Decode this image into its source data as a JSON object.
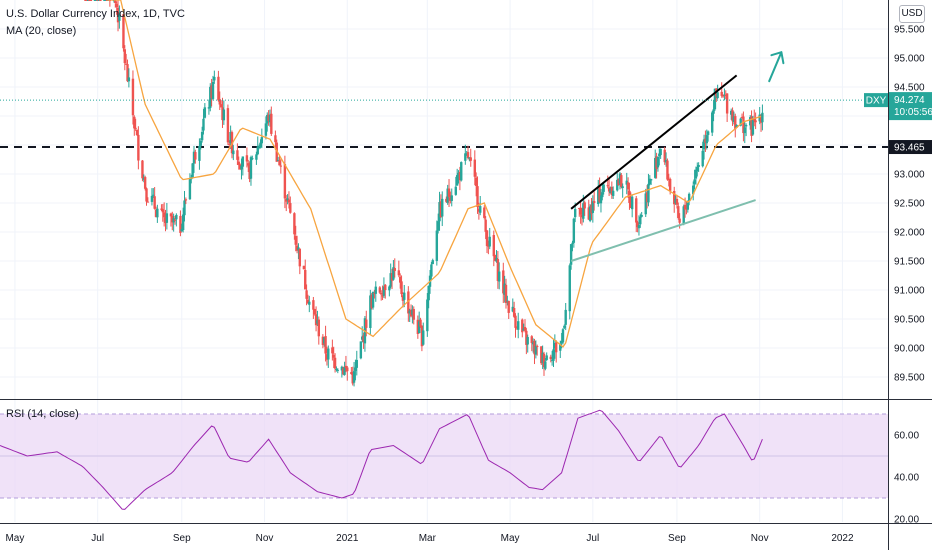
{
  "header": {
    "title": "U.S. Dollar Currency Index, 1D, TVC",
    "ma_label": "MA (20, close)",
    "rsi_label": "RSI (14, close)",
    "currency_button": "USD",
    "symbol_tag": "DXY",
    "last_price_label": "94.274",
    "countdown": "10:05:56",
    "level_label": "93.465"
  },
  "colors": {
    "up": "#26a69a",
    "down": "#ef5350",
    "ma": "#f7a540",
    "rsi": "#9c27b0",
    "rsi_band": "#e9d5f5",
    "trend_upper": "#000000",
    "trend_lower": "#7fbfae",
    "arrow": "#26a69a",
    "level": "#131722"
  },
  "chart_data": [
    {
      "type": "candlestick",
      "title": "U.S. Dollar Currency Index, 1D, TVC",
      "x_ticks": [
        "May",
        "Jul",
        "Sep",
        "Nov",
        "2021",
        "Mar",
        "May",
        "Jul",
        "Sep",
        "Nov",
        "2022"
      ],
      "y_ticks": [
        "89.500",
        "90.000",
        "90.500",
        "91.000",
        "91.500",
        "92.000",
        "92.500",
        "93.000",
        "93.500",
        "94.000",
        "94.500",
        "95.000",
        "95.500"
      ],
      "ylim": [
        89.2,
        95.9
      ],
      "series": [
        {
          "name": "U.S. Dollar Currency Index",
          "anchors": [
            [
              "2020-07-01",
              96.6
            ],
            [
              "2020-07-15",
              95.9
            ],
            [
              "2020-07-31",
              93.4
            ],
            [
              "2020-08-06",
              92.7
            ],
            [
              "2020-08-18",
              92.2
            ],
            [
              "2020-08-31",
              92.1
            ],
            [
              "2020-09-10",
              93.3
            ],
            [
              "2020-09-25",
              94.6
            ],
            [
              "2020-10-06",
              93.6
            ],
            [
              "2020-10-20",
              93.0
            ],
            [
              "2020-11-04",
              94.0
            ],
            [
              "2020-11-20",
              92.3
            ],
            [
              "2020-12-04",
              90.8
            ],
            [
              "2020-12-17",
              89.9
            ],
            [
              "2021-01-06",
              89.5
            ],
            [
              "2021-01-18",
              90.8
            ],
            [
              "2021-02-04",
              91.3
            ],
            [
              "2021-02-25",
              90.2
            ],
            [
              "2021-03-09",
              92.3
            ],
            [
              "2021-03-31",
              93.3
            ],
            [
              "2021-04-13",
              92.0
            ],
            [
              "2021-04-29",
              90.8
            ],
            [
              "2021-05-11",
              90.2
            ],
            [
              "2021-05-25",
              89.8
            ],
            [
              "2021-06-08",
              90.1
            ],
            [
              "2021-06-18",
              92.3
            ],
            [
              "2021-06-30",
              92.4
            ],
            [
              "2021-07-07",
              92.7
            ],
            [
              "2021-07-23",
              92.9
            ],
            [
              "2021-08-04",
              92.2
            ],
            [
              "2021-08-20",
              93.5
            ],
            [
              "2021-09-03",
              92.1
            ],
            [
              "2021-09-17",
              93.2
            ],
            [
              "2021-09-29",
              94.3
            ],
            [
              "2021-10-06",
              94.3
            ],
            [
              "2021-10-15",
              93.9
            ],
            [
              "2021-10-27",
              93.8
            ],
            [
              "2021-11-03",
              94.1
            ]
          ],
          "last": 94.274
        },
        {
          "name": "MA (20, close)",
          "anchors": [
            [
              "2020-07-08",
              97.0
            ],
            [
              "2020-08-05",
              94.2
            ],
            [
              "2020-09-01",
              92.9
            ],
            [
              "2020-09-25",
              93.0
            ],
            [
              "2020-10-15",
              93.8
            ],
            [
              "2020-11-05",
              93.6
            ],
            [
              "2020-12-05",
              92.4
            ],
            [
              "2020-12-31",
              90.5
            ],
            [
              "2021-01-20",
              90.2
            ],
            [
              "2021-02-10",
              90.7
            ],
            [
              "2021-03-10",
              91.3
            ],
            [
              "2021-03-31",
              92.4
            ],
            [
              "2021-04-12",
              92.5
            ],
            [
              "2021-05-01",
              91.4
            ],
            [
              "2021-05-20",
              90.4
            ],
            [
              "2021-06-10",
              90.0
            ],
            [
              "2021-06-30",
              91.8
            ],
            [
              "2021-07-25",
              92.6
            ],
            [
              "2021-08-20",
              92.8
            ],
            [
              "2021-09-10",
              92.5
            ],
            [
              "2021-09-30",
              93.5
            ],
            [
              "2021-10-20",
              93.9
            ],
            [
              "2021-11-03",
              94.0
            ]
          ]
        }
      ],
      "horizontal_level": 93.465,
      "trendlines": [
        {
          "name": "upper",
          "from": [
            "2021-06-15",
            92.4
          ],
          "to": [
            "2021-10-15",
            94.7
          ]
        },
        {
          "name": "lower",
          "from": [
            "2021-06-15",
            91.5
          ],
          "to": [
            "2021-10-29",
            92.55
          ]
        }
      ],
      "arrow": {
        "from": [
          "2021-11-08",
          94.6
        ],
        "to": [
          "2021-11-17",
          95.1
        ]
      }
    },
    {
      "type": "line",
      "title": "RSI (14, close)",
      "y_ticks": [
        "20.00",
        "40.00",
        "60.00"
      ],
      "ylim": [
        18,
        78
      ],
      "band": [
        30,
        70
      ],
      "series": [
        {
          "name": "RSI (14, close)",
          "anchors": [
            [
              "2020-04-20",
              55
            ],
            [
              "2020-05-10",
              50
            ],
            [
              "2020-06-01",
              52
            ],
            [
              "2020-06-20",
              45
            ],
            [
              "2020-07-05",
              35
            ],
            [
              "2020-07-20",
              24
            ],
            [
              "2020-08-05",
              34
            ],
            [
              "2020-08-25",
              42
            ],
            [
              "2020-09-10",
              55
            ],
            [
              "2020-09-24",
              65
            ],
            [
              "2020-10-06",
              49
            ],
            [
              "2020-10-20",
              47
            ],
            [
              "2020-11-04",
              58
            ],
            [
              "2020-11-20",
              42
            ],
            [
              "2020-12-10",
              33
            ],
            [
              "2020-12-28",
              30
            ],
            [
              "2021-01-06",
              32
            ],
            [
              "2021-01-18",
              53
            ],
            [
              "2021-02-04",
              55
            ],
            [
              "2021-02-25",
              46
            ],
            [
              "2021-03-10",
              63
            ],
            [
              "2021-03-31",
              70
            ],
            [
              "2021-04-15",
              48
            ],
            [
              "2021-05-01",
              42
            ],
            [
              "2021-05-15",
              35
            ],
            [
              "2021-05-25",
              34
            ],
            [
              "2021-06-08",
              42
            ],
            [
              "2021-06-20",
              68
            ],
            [
              "2021-07-07",
              72
            ],
            [
              "2021-07-20",
              62
            ],
            [
              "2021-08-04",
              47
            ],
            [
              "2021-08-20",
              60
            ],
            [
              "2021-09-03",
              44
            ],
            [
              "2021-09-17",
              55
            ],
            [
              "2021-09-29",
              68
            ],
            [
              "2021-10-06",
              70
            ],
            [
              "2021-10-20",
              55
            ],
            [
              "2021-10-27",
              47
            ],
            [
              "2021-11-03",
              58
            ]
          ]
        }
      ]
    }
  ]
}
